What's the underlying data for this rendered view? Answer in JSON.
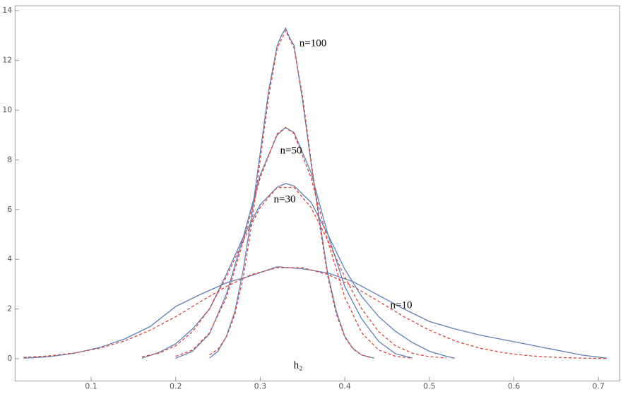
{
  "chart_data": {
    "type": "line",
    "xlabel": "h₂",
    "annotations": [
      "n=100",
      "n=50",
      "n=30",
      "n=10"
    ],
    "xlim": [
      0.01,
      0.725
    ],
    "ylim": [
      -0.9,
      14.2
    ],
    "xticks": [
      0.1,
      0.2,
      0.3,
      0.4,
      0.5,
      0.6,
      0.7
    ],
    "yticks": [
      0,
      2,
      4,
      6,
      8,
      10,
      12,
      14
    ],
    "series": [
      {
        "color": "#5e81b5",
        "dash": "solid",
        "x": [
          0.02,
          0.05,
          0.08,
          0.11,
          0.14,
          0.17,
          0.2,
          0.23,
          0.26,
          0.29,
          0.32,
          0.35,
          0.38,
          0.41,
          0.44,
          0.47,
          0.5,
          0.53,
          0.56,
          0.59,
          0.62,
          0.65,
          0.68,
          0.71
        ],
        "values": [
          0.02,
          0.08,
          0.22,
          0.45,
          0.8,
          1.3,
          2.1,
          2.6,
          3.05,
          3.35,
          3.7,
          3.62,
          3.45,
          3.1,
          2.55,
          2.0,
          1.5,
          1.2,
          0.95,
          0.75,
          0.55,
          0.35,
          0.15,
          0.02
        ]
      },
      {
        "color": "#e0403a",
        "dash": "dashed",
        "x": [
          0.02,
          0.05,
          0.08,
          0.11,
          0.14,
          0.17,
          0.2,
          0.23,
          0.26,
          0.29,
          0.32,
          0.35,
          0.38,
          0.41,
          0.44,
          0.47,
          0.5,
          0.53,
          0.56,
          0.59,
          0.62,
          0.65,
          0.68,
          0.71
        ],
        "values": [
          0.053,
          0.114,
          0.228,
          0.42,
          0.72,
          1.15,
          1.69,
          2.31,
          2.91,
          3.39,
          3.66,
          3.66,
          3.39,
          2.91,
          2.31,
          1.69,
          1.15,
          0.72,
          0.42,
          0.228,
          0.114,
          0.053,
          0.022,
          0.009
        ]
      },
      {
        "color": "#5e81b5",
        "dash": "solid",
        "x": [
          0.16,
          0.18,
          0.2,
          0.22,
          0.24,
          0.26,
          0.28,
          0.3,
          0.32,
          0.33,
          0.34,
          0.36,
          0.38,
          0.4,
          0.42,
          0.44,
          0.46,
          0.48,
          0.5,
          0.52,
          0.53
        ],
        "values": [
          0.02,
          0.25,
          0.6,
          1.2,
          2.0,
          3.4,
          4.9,
          6.2,
          6.9,
          7.05,
          6.95,
          6.3,
          5.0,
          3.6,
          2.5,
          1.7,
          1.1,
          0.65,
          0.3,
          0.1,
          0.02
        ]
      },
      {
        "color": "#e0403a",
        "dash": "dashed",
        "x": [
          0.16,
          0.18,
          0.2,
          0.22,
          0.24,
          0.26,
          0.28,
          0.3,
          0.32,
          0.34,
          0.36,
          0.38,
          0.4,
          0.42,
          0.44,
          0.46,
          0.48,
          0.5,
          0.52
        ],
        "values": [
          0.082,
          0.22,
          0.52,
          1.09,
          2.01,
          3.29,
          4.76,
          6.09,
          6.89,
          6.89,
          6.09,
          4.76,
          3.29,
          2.01,
          1.09,
          0.52,
          0.22,
          0.082,
          0.027
        ]
      },
      {
        "color": "#5e81b5",
        "dash": "solid",
        "x": [
          0.2,
          0.22,
          0.24,
          0.26,
          0.28,
          0.3,
          0.32,
          0.33,
          0.34,
          0.36,
          0.38,
          0.4,
          0.42,
          0.44,
          0.46,
          0.48
        ],
        "values": [
          0.02,
          0.3,
          1.0,
          2.6,
          4.9,
          7.4,
          9.0,
          9.3,
          9.1,
          7.5,
          5.0,
          2.9,
          1.6,
          0.7,
          0.2,
          0.03
        ]
      },
      {
        "color": "#e0403a",
        "dash": "dashed",
        "x": [
          0.2,
          0.22,
          0.24,
          0.26,
          0.28,
          0.3,
          0.32,
          0.33,
          0.34,
          0.36,
          0.38,
          0.4,
          0.42,
          0.44,
          0.46,
          0.48
        ],
        "values": [
          0.096,
          0.35,
          1.04,
          2.47,
          4.73,
          7.29,
          9.05,
          9.3,
          9.05,
          7.29,
          4.73,
          2.47,
          1.04,
          0.35,
          0.096,
          0.021
        ]
      },
      {
        "color": "#5e81b5",
        "dash": "solid",
        "x": [
          0.24,
          0.25,
          0.26,
          0.27,
          0.28,
          0.29,
          0.3,
          0.31,
          0.32,
          0.325,
          0.33,
          0.335,
          0.34,
          0.35,
          0.36,
          0.37,
          0.38,
          0.39,
          0.4,
          0.41,
          0.42,
          0.435
        ],
        "values": [
          0.03,
          0.3,
          0.9,
          1.9,
          3.6,
          5.8,
          8.3,
          10.8,
          12.6,
          13.0,
          13.3,
          12.9,
          12.6,
          10.4,
          7.9,
          5.6,
          3.4,
          1.9,
          0.9,
          0.4,
          0.15,
          0.02
        ]
      },
      {
        "color": "#e0403a",
        "dash": "dashed",
        "x": [
          0.24,
          0.25,
          0.26,
          0.27,
          0.28,
          0.29,
          0.3,
          0.31,
          0.32,
          0.33,
          0.34,
          0.35,
          0.36,
          0.37,
          0.38,
          0.39,
          0.4,
          0.41,
          0.42,
          0.43
        ],
        "values": [
          0.15,
          0.38,
          0.87,
          1.79,
          3.29,
          5.43,
          8.01,
          10.57,
          12.49,
          13.2,
          12.49,
          10.57,
          8.01,
          5.43,
          3.29,
          1.79,
          0.87,
          0.38,
          0.15,
          0.051
        ]
      }
    ]
  }
}
